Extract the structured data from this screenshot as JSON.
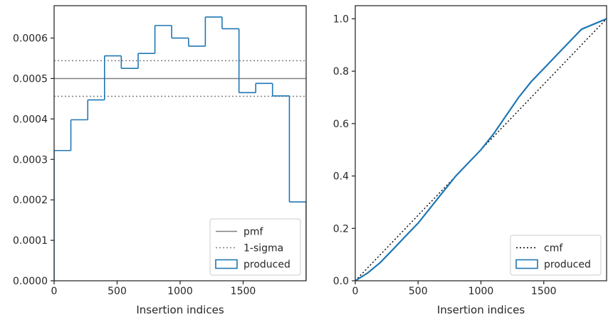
{
  "chart_data": [
    {
      "type": "step",
      "xlabel": "Insertion indices",
      "ylabel": "",
      "xlim": [
        0,
        2000
      ],
      "ylim": [
        0,
        0.00068
      ],
      "xticks": [
        0,
        500,
        1000,
        1500
      ],
      "xtick_labels": [
        "0",
        "500",
        "1000",
        "1500"
      ],
      "yticks": [
        0,
        0.0001,
        0.0002,
        0.0003,
        0.0004,
        0.0005,
        0.0006
      ],
      "ytick_labels": [
        "0.0000",
        "0.0001",
        "0.0002",
        "0.0003",
        "0.0004",
        "0.0005",
        "0.0006"
      ],
      "grid": false,
      "legend_position": "lower-right",
      "legend": [
        {
          "label": "pmf",
          "style": "solid",
          "color": "#808080"
        },
        {
          "label": "1-sigma",
          "style": "dotted",
          "color": "#808080"
        },
        {
          "label": "produced",
          "style": "patch",
          "color": "#1f77b4"
        }
      ],
      "hlines": [
        {
          "name": "pmf",
          "y": 0.0005,
          "style": "solid",
          "color": "#808080"
        },
        {
          "name": "1-sigma",
          "y": 0.000544,
          "style": "dotted",
          "color": "#808080"
        },
        {
          "name": "1-sigma",
          "y": 0.000456,
          "style": "dotted",
          "color": "#808080"
        }
      ],
      "histogram": {
        "name": "produced",
        "color": "#1f77b4",
        "bin_edges": [
          0,
          133,
          267,
          400,
          533,
          667,
          800,
          933,
          1067,
          1200,
          1333,
          1467,
          1600,
          1733,
          1867,
          2000
        ],
        "values": [
          0.000322,
          0.000398,
          0.000447,
          0.000556,
          0.000525,
          0.000562,
          0.000631,
          0.0006,
          0.00058,
          0.000652,
          0.000623,
          0.000465,
          0.000488,
          0.000457,
          0.000195
        ]
      }
    },
    {
      "type": "line",
      "xlabel": "Insertion indices",
      "ylabel": "",
      "xlim": [
        0,
        2000
      ],
      "ylim": [
        0,
        1.05
      ],
      "xticks": [
        0,
        500,
        1000,
        1500
      ],
      "xtick_labels": [
        "0",
        "500",
        "1000",
        "1500"
      ],
      "yticks": [
        0,
        0.2,
        0.4,
        0.6,
        0.8,
        1.0
      ],
      "ytick_labels": [
        "0.0",
        "0.2",
        "0.4",
        "0.6",
        "0.8",
        "1.0"
      ],
      "grid": false,
      "legend_position": "lower-right",
      "legend": [
        {
          "label": "cmf",
          "style": "dotted",
          "color": "#000000"
        },
        {
          "label": "produced",
          "style": "patch",
          "color": "#1f77b4"
        }
      ],
      "series": [
        {
          "name": "cmf",
          "style": "dotted",
          "color": "#000000",
          "x": [
            0,
            2000
          ],
          "y": [
            0,
            1
          ]
        },
        {
          "name": "produced",
          "style": "solid",
          "color": "#1f77b4",
          "x": [
            0,
            100,
            200,
            300,
            400,
            500,
            600,
            700,
            800,
            900,
            1000,
            1100,
            1200,
            1300,
            1400,
            1500,
            1600,
            1700,
            1800,
            1900,
            2000
          ],
          "y": [
            0,
            0.03,
            0.07,
            0.12,
            0.17,
            0.22,
            0.28,
            0.34,
            0.4,
            0.45,
            0.5,
            0.56,
            0.63,
            0.7,
            0.76,
            0.81,
            0.86,
            0.91,
            0.96,
            0.98,
            1.0
          ]
        }
      ]
    }
  ]
}
